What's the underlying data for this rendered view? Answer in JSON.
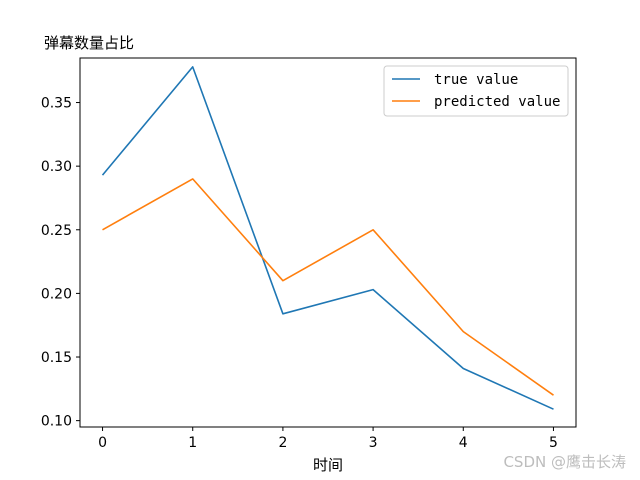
{
  "chart_data": {
    "type": "line",
    "title": "弹幕数量占比",
    "xlabel": "时间",
    "ylabel": "",
    "x": [
      0,
      1,
      2,
      3,
      4,
      5
    ],
    "x_ticks": [
      "0",
      "1",
      "2",
      "3",
      "4",
      "5"
    ],
    "y_ticks": [
      "0.10",
      "0.15",
      "0.20",
      "0.25",
      "0.30",
      "0.35"
    ],
    "ylim": [
      0.095,
      0.385
    ],
    "xlim": [
      -0.25,
      5.25
    ],
    "grid": false,
    "legend_position": "upper right",
    "series": [
      {
        "name": "true value",
        "color": "#1f77b4",
        "values": [
          0.293,
          0.378,
          0.184,
          0.203,
          0.141,
          0.109
        ]
      },
      {
        "name": "predicted value",
        "color": "#ff7f0e",
        "values": [
          0.25,
          0.29,
          0.21,
          0.25,
          0.17,
          0.12
        ]
      }
    ]
  },
  "watermark": "CSDN @鹰击长涛"
}
